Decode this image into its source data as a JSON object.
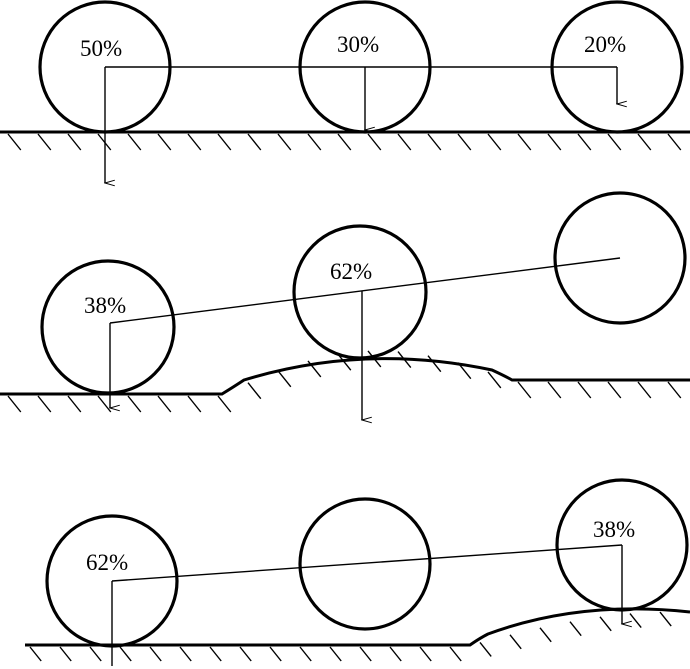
{
  "diagram": {
    "panel_top": {
      "labels": [
        "50%",
        "30%",
        "20%"
      ]
    },
    "panel_middle": {
      "labels": [
        "38%",
        "62%"
      ]
    },
    "panel_bottom": {
      "labels": [
        "62%",
        "38%"
      ]
    },
    "colors": {
      "ink": "#000000",
      "background": "#ffffff"
    }
  }
}
